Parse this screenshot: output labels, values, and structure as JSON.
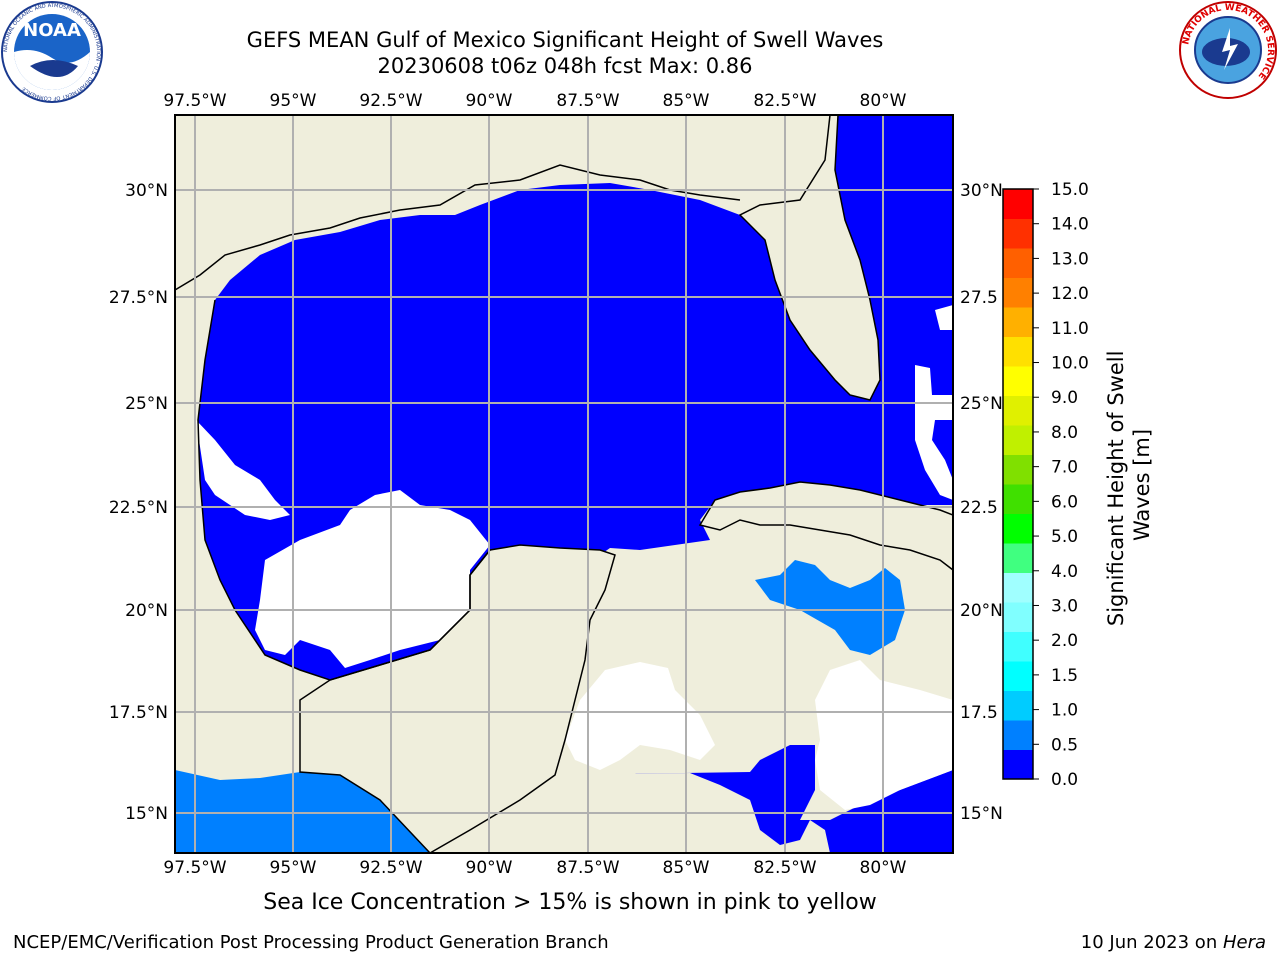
{
  "header": {
    "title_line1": "GEFS MEAN Gulf of Mexico Significant Height of Swell Waves",
    "title_line2": "20230608 t06z 048h fcst   Max: 0.86"
  },
  "logos": {
    "noaa_text": "NOAA",
    "noaa_ring": "NATIONAL OCEANIC AND ATMOSPHERIC ADMINISTRATION · U.S. DEPARTMENT OF COMMERCE",
    "nws_ring": "NATIONAL WEATHER SERVICE"
  },
  "map": {
    "lon_labels": [
      "97.5°W",
      "95°W",
      "92.5°W",
      "90°W",
      "87.5°W",
      "85°W",
      "82.5°W",
      "80°W"
    ],
    "lat_labels_left": [
      "30°N",
      "27.5°N",
      "25°N",
      "22.5°N",
      "20°N",
      "17.5°N",
      "15°N"
    ],
    "lat_labels_right": [
      "30°N",
      "27.5",
      "25°N",
      "22.5",
      "20°N",
      "17.5",
      "15°N"
    ],
    "land_color": "#efeedc",
    "ocean_color": "#0000ff",
    "grid_color": "#b0b0b0"
  },
  "colorbar": {
    "label": "Significant Height of Swell Waves [m]",
    "label_line1": "Significant Height of Swell",
    "label_line2": "Waves [m]",
    "ticks": [
      "15.0",
      "14.0",
      "13.0",
      "12.0",
      "11.0",
      "10.0",
      "9.0",
      "8.0",
      "7.0",
      "6.0",
      "5.0",
      "4.0",
      "3.0",
      "2.0",
      "1.5",
      "1.0",
      "0.5",
      "0.0"
    ],
    "colors_bottom_to_top": [
      "#0000ff",
      "#0080ff",
      "#00ccff",
      "#00ffff",
      "#40ffff",
      "#80ffff",
      "#a0ffff",
      "#40ff80",
      "#00ff00",
      "#40e000",
      "#80e000",
      "#c0f000",
      "#e0f000",
      "#ffff00",
      "#ffe000",
      "#ffb000",
      "#ff8000",
      "#ff6000",
      "#ff3000",
      "#ff0000"
    ]
  },
  "footer": {
    "note": "Sea Ice Concentration > 15% is shown in pink to yellow",
    "credit": "NCEP/EMC/Verification Post Processing Product Generation Branch",
    "date": "10 Jun 2023 on ",
    "host": "Hera"
  }
}
